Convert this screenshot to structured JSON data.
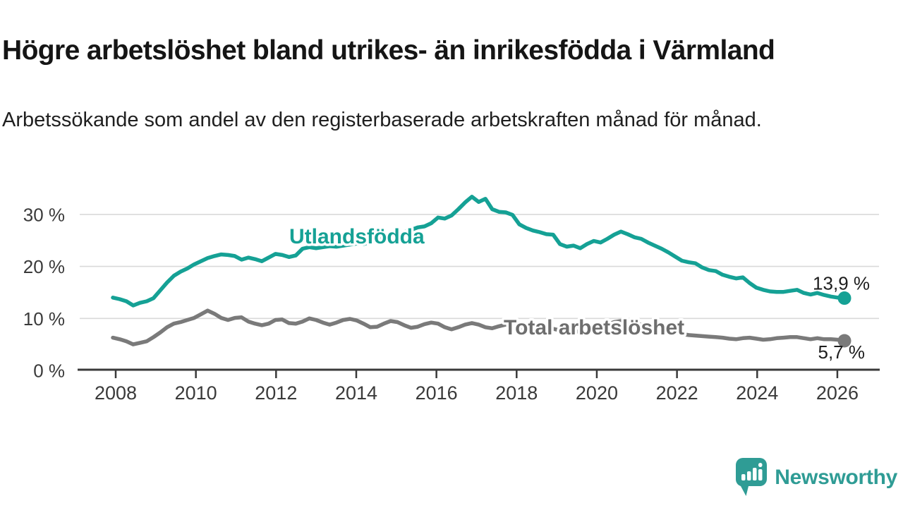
{
  "header": {
    "title": "Högre arbetslöshet bland utrikes- än inrikesfödda i Värmland",
    "subtitle": "Arbetssökande som andel av den registerbaserade arbetskraften månad för månad."
  },
  "chart_data": {
    "type": "line",
    "unit": "%",
    "x_axis": {
      "ticks": [
        2008,
        2010,
        2012,
        2014,
        2016,
        2018,
        2020,
        2022,
        2024,
        2026
      ],
      "start": 2007.9,
      "end": 2026.2
    },
    "y_axis": {
      "ticks": [
        0,
        10,
        20,
        30
      ],
      "tick_suffix": " %",
      "ylim": [
        0,
        35
      ],
      "grid": true
    },
    "sample_step_months": 2,
    "legend_position": "inline-labels",
    "series": [
      {
        "name": "Utlandsfödda",
        "color": "#15a195",
        "end_label": "13,9 %",
        "end_value": 13.9,
        "values": [
          14.0,
          13.7,
          13.3,
          12.5,
          13.0,
          13.3,
          13.9,
          15.4,
          16.9,
          18.2,
          19.0,
          19.6,
          20.4,
          21.0,
          21.6,
          22.0,
          22.3,
          22.2,
          22.0,
          21.3,
          21.7,
          21.4,
          21.0,
          21.7,
          22.4,
          22.2,
          21.8,
          22.1,
          23.4,
          23.7,
          23.5,
          23.7,
          23.9,
          23.8,
          24.0,
          24.2,
          24.4,
          24.3,
          24.7,
          25.1,
          25.5,
          25.8,
          26.2,
          26.6,
          27.0,
          27.5,
          27.7,
          28.3,
          29.4,
          29.2,
          29.8,
          31.0,
          32.3,
          33.4,
          32.4,
          33.0,
          31.0,
          30.5,
          30.4,
          29.9,
          28.1,
          27.4,
          26.9,
          26.6,
          26.2,
          26.1,
          24.3,
          23.8,
          24.0,
          23.5,
          24.3,
          24.9,
          24.6,
          25.3,
          26.1,
          26.7,
          26.2,
          25.6,
          25.3,
          24.6,
          24.0,
          23.4,
          22.7,
          21.9,
          21.1,
          20.8,
          20.6,
          19.8,
          19.3,
          19.1,
          18.4,
          18.0,
          17.7,
          17.9,
          16.8,
          15.9,
          15.5,
          15.2,
          15.1,
          15.1,
          15.3,
          15.5,
          14.9,
          14.6,
          14.9,
          14.5,
          14.2,
          14.0,
          13.9
        ]
      },
      {
        "name": "Total arbetslöshet",
        "color": "#7a7a7a",
        "label_color": "#6e6e6e",
        "end_label": "5,7 %",
        "end_value": 5.7,
        "values": [
          6.3,
          6.0,
          5.6,
          5.0,
          5.3,
          5.6,
          6.4,
          7.3,
          8.3,
          9.0,
          9.3,
          9.7,
          10.1,
          10.8,
          11.5,
          10.9,
          10.1,
          9.7,
          10.1,
          10.2,
          9.4,
          9.0,
          8.7,
          9.0,
          9.7,
          9.8,
          9.1,
          9.0,
          9.4,
          10.0,
          9.7,
          9.2,
          8.8,
          9.2,
          9.7,
          9.9,
          9.6,
          9.0,
          8.3,
          8.4,
          9.0,
          9.5,
          9.3,
          8.7,
          8.2,
          8.4,
          8.9,
          9.2,
          9.0,
          8.3,
          7.9,
          8.3,
          8.8,
          9.1,
          8.8,
          8.3,
          8.1,
          8.5,
          8.8,
          8.6,
          8.3,
          7.9,
          7.7,
          8.0,
          8.2,
          8.0,
          7.7,
          7.4,
          7.3,
          7.6,
          7.9,
          8.1,
          8.4,
          8.8,
          9.3,
          9.5,
          9.3,
          9.0,
          8.8,
          8.4,
          8.0,
          7.8,
          7.5,
          7.3,
          7.0,
          6.8,
          6.7,
          6.6,
          6.5,
          6.4,
          6.3,
          6.1,
          6.0,
          6.2,
          6.3,
          6.1,
          5.9,
          6.0,
          6.2,
          6.3,
          6.4,
          6.4,
          6.2,
          6.0,
          6.2,
          6.0,
          6.0,
          5.9,
          5.7
        ]
      }
    ]
  },
  "branding": {
    "name": "Newsworthy",
    "color": "#2f9c95",
    "icon": "newsworthy-speech-bubble-chart-icon"
  }
}
